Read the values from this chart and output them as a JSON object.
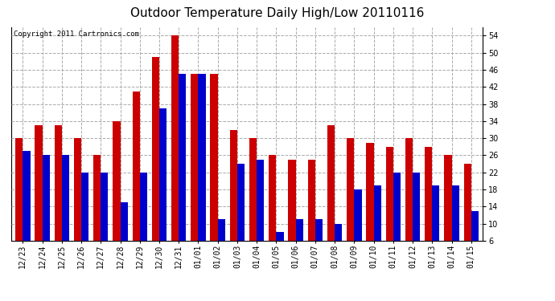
{
  "title": "Outdoor Temperature Daily High/Low 20110116",
  "copyright": "Copyright 2011 Cartronics.com",
  "dates": [
    "12/23",
    "12/24",
    "12/25",
    "12/26",
    "12/27",
    "12/28",
    "12/29",
    "12/30",
    "12/31",
    "01/01",
    "01/02",
    "01/03",
    "01/04",
    "01/05",
    "01/06",
    "01/07",
    "01/08",
    "01/09",
    "01/10",
    "01/11",
    "01/12",
    "01/13",
    "01/14",
    "01/15"
  ],
  "highs": [
    30,
    33,
    33,
    30,
    26,
    34,
    41,
    49,
    54,
    45,
    45,
    32,
    30,
    26,
    25,
    25,
    33,
    30,
    29,
    28,
    30,
    28,
    26,
    24
  ],
  "lows": [
    27,
    26,
    26,
    22,
    22,
    15,
    22,
    37,
    45,
    45,
    11,
    24,
    25,
    8,
    11,
    11,
    10,
    18,
    19,
    22,
    22,
    19,
    19,
    13
  ],
  "high_color": "#cc0000",
  "low_color": "#0000cc",
  "background_color": "#ffffff",
  "plot_bg_color": "#ffffff",
  "grid_color": "#aaaaaa",
  "ylim_min": 6.0,
  "ylim_max": 56.0,
  "yticks": [
    6.0,
    10.0,
    14.0,
    18.0,
    22.0,
    26.0,
    30.0,
    34.0,
    38.0,
    42.0,
    46.0,
    50.0,
    54.0
  ],
  "title_fontsize": 11,
  "tick_fontsize": 7,
  "copyright_fontsize": 6.5,
  "bar_width": 0.38
}
